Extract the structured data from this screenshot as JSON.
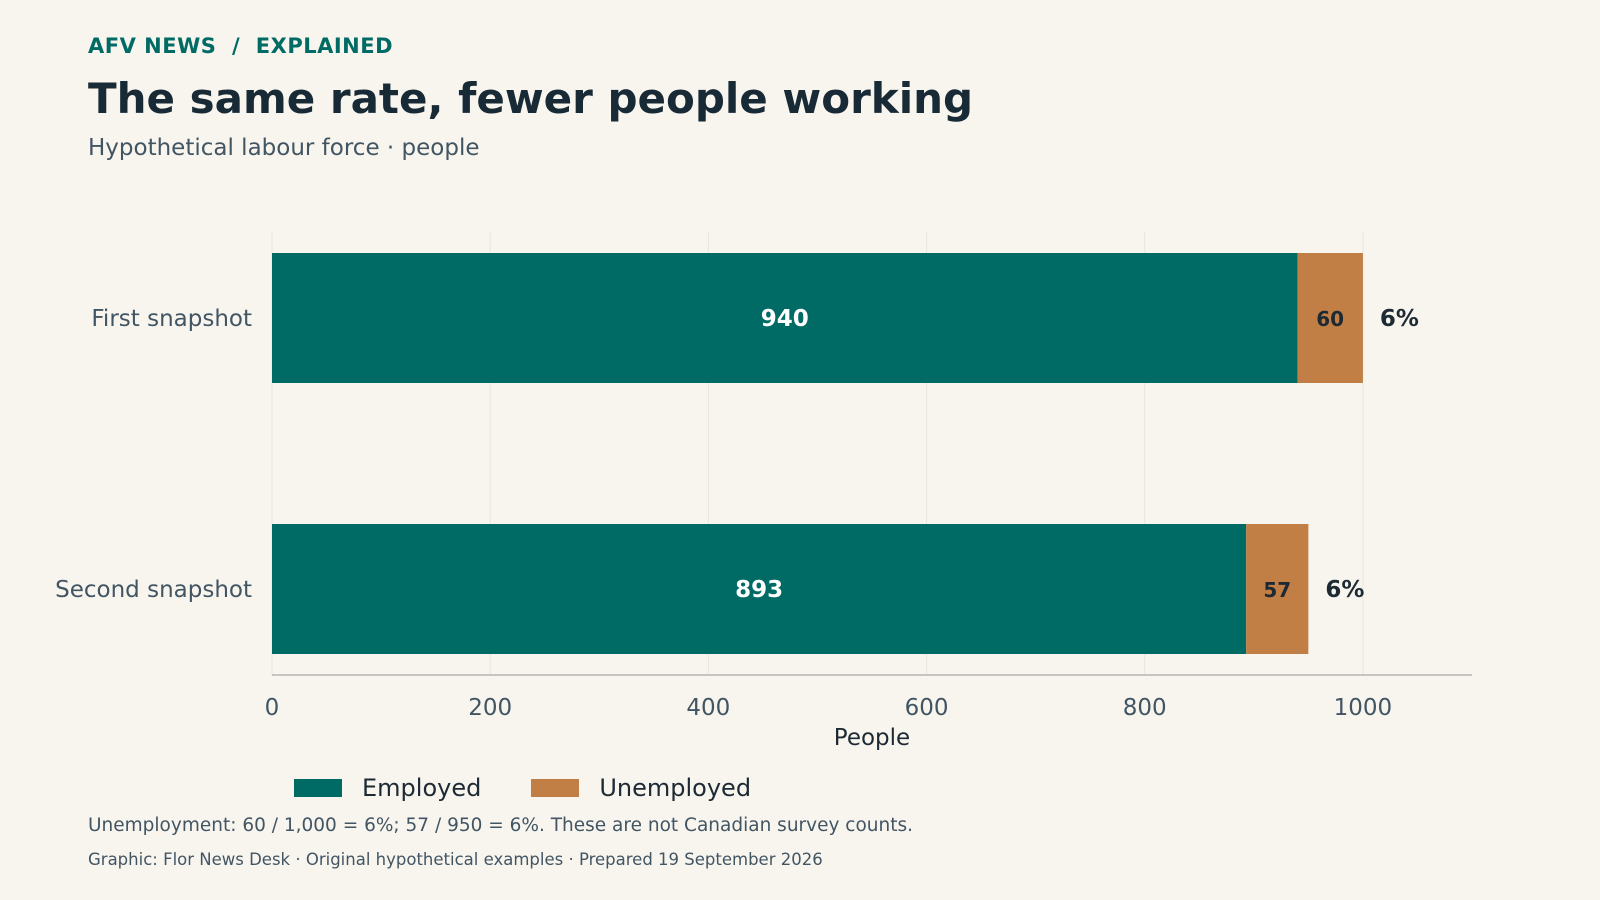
{
  "header": {
    "kicker": "AFV NEWS  /  EXPLAINED",
    "title": "The same rate, fewer people working",
    "subtitle": "Hypothetical labour force · people"
  },
  "chart_data": {
    "type": "bar",
    "orientation": "horizontal",
    "stacked": true,
    "categories": [
      "First snapshot",
      "Second snapshot"
    ],
    "series": [
      {
        "name": "Employed",
        "values": [
          940,
          893
        ],
        "color": "#006b64"
      },
      {
        "name": "Unemployed",
        "values": [
          60,
          57
        ],
        "color": "#c17f45"
      }
    ],
    "rate_labels": [
      "6%",
      "6%"
    ],
    "xlabel": "People",
    "xlim": [
      0,
      1100
    ],
    "xticks": [
      0,
      200,
      400,
      600,
      800,
      1000
    ],
    "grid": "vertical",
    "legend": "bottom"
  },
  "footer": {
    "note": "Unemployment: 60 / 1,000 = 6%; 57 / 950 = 6%. These are not Canadian survey counts.",
    "credit": "Graphic: Flor News Desk · Original hypothetical examples · Prepared 19 September 2026"
  }
}
